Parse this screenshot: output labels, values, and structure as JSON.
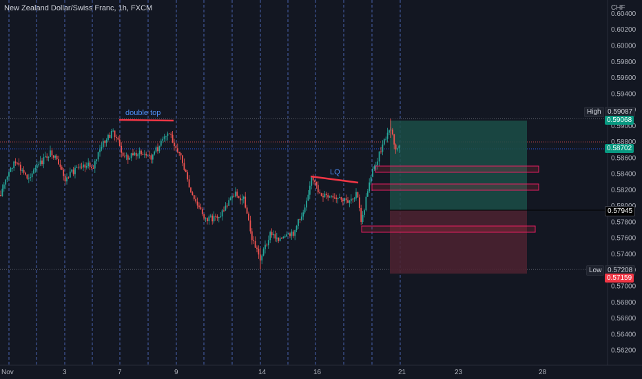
{
  "symbol": {
    "title": "New Zealand Dollar/Swiss Franc, 1h, FXCM"
  },
  "price_axis": {
    "currency": "CHF",
    "ticks": [
      "0.60400",
      "0.60200",
      "0.60000",
      "0.59800",
      "0.59600",
      "0.59400",
      "0.59200",
      "0.59000",
      "0.58800",
      "0.58600",
      "0.58400",
      "0.58200",
      "0.58000",
      "0.57800",
      "0.57600",
      "0.57400",
      "0.57200",
      "0.57000",
      "0.56800",
      "0.56600",
      "0.56400",
      "0.56200"
    ]
  },
  "time_axis": {
    "labels": [
      "Nov",
      "3",
      "7",
      "9",
      "14",
      "16",
      "21",
      "23",
      "28"
    ]
  },
  "markers": {
    "high_label": "High",
    "high_value": "0.59087",
    "low_label": "Low",
    "low_value": "0.57208",
    "tp_value": "0.59068",
    "last_price": "0.58702",
    "entry_value": "0.57945",
    "sl_value": "0.57159"
  },
  "annotations": {
    "double_top": "double top",
    "liquidity": "LQ"
  },
  "colors": {
    "background": "#131722",
    "bull": "#26a69a",
    "bear": "#ef5350",
    "annotation_line": "#f23645",
    "annotation_text": "#4f8ff7",
    "profit_zone": "#1b4d47",
    "loss_zone": "#4d2230",
    "grid_dash": "#5b7de0"
  }
}
